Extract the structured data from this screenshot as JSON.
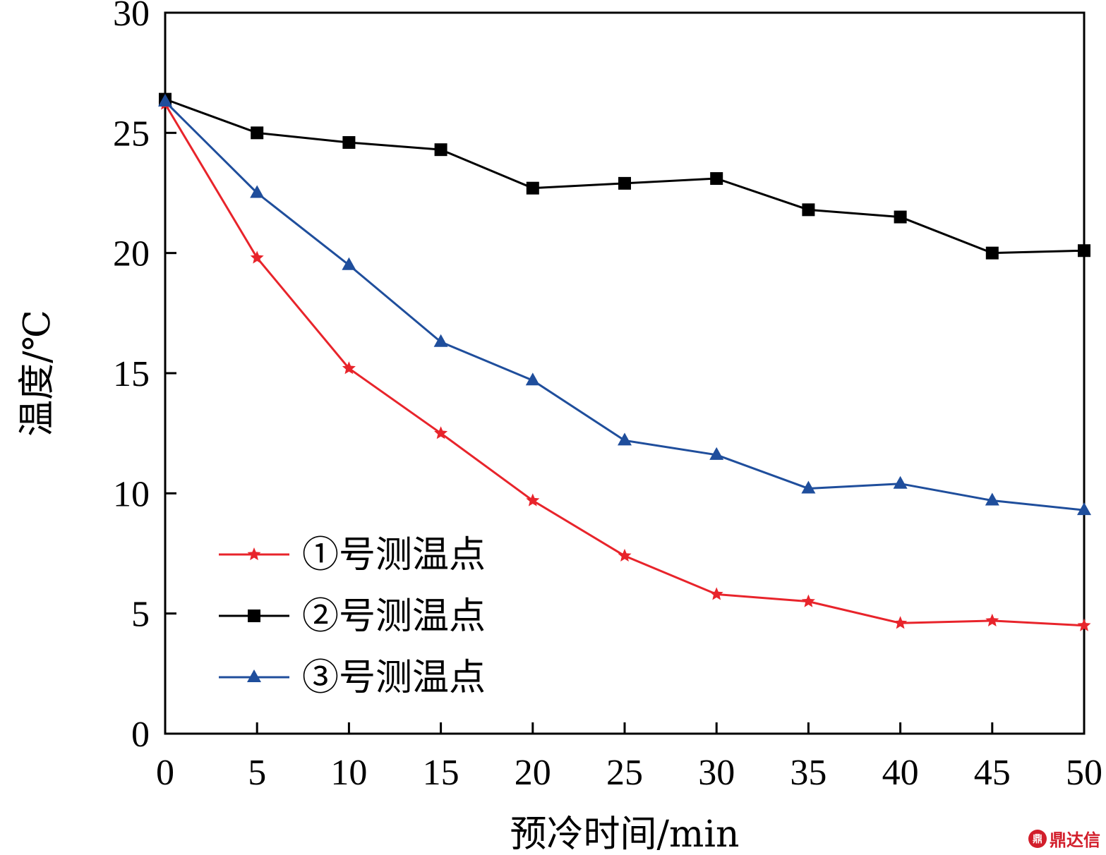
{
  "chart_data": {
    "type": "line",
    "title": "",
    "xlabel": "预冷时间/min",
    "ylabel": "温度/℃",
    "xlim": [
      0,
      50
    ],
    "ylim": [
      0,
      30
    ],
    "x": [
      0,
      5,
      10,
      15,
      20,
      25,
      30,
      35,
      40,
      45,
      50
    ],
    "x_ticks": [
      "0",
      "5",
      "10",
      "15",
      "20",
      "25",
      "30",
      "35",
      "40",
      "45",
      "50"
    ],
    "y_ticks": [
      "0",
      "5",
      "10",
      "15",
      "20",
      "25",
      "30"
    ],
    "grid": false,
    "legend_position": "bottom-left",
    "series": [
      {
        "name": "①号测温点",
        "color": "#e8242b",
        "marker": "star",
        "values": [
          26.2,
          19.8,
          15.2,
          12.5,
          9.7,
          7.4,
          5.8,
          5.5,
          4.6,
          4.7,
          4.5
        ]
      },
      {
        "name": "②号测温点",
        "color": "#000000",
        "marker": "square",
        "values": [
          26.4,
          25.0,
          24.6,
          24.3,
          22.7,
          22.9,
          23.1,
          21.8,
          21.5,
          20.0,
          20.1
        ]
      },
      {
        "name": "③号测温点",
        "color": "#1f4e9c",
        "marker": "triangle",
        "values": [
          26.3,
          22.5,
          19.5,
          16.3,
          14.7,
          12.2,
          11.6,
          10.2,
          10.4,
          9.7,
          9.3
        ]
      }
    ]
  },
  "watermark": {
    "text": "鼎达信",
    "logo": "鼎",
    "color": "#d21e2b"
  }
}
